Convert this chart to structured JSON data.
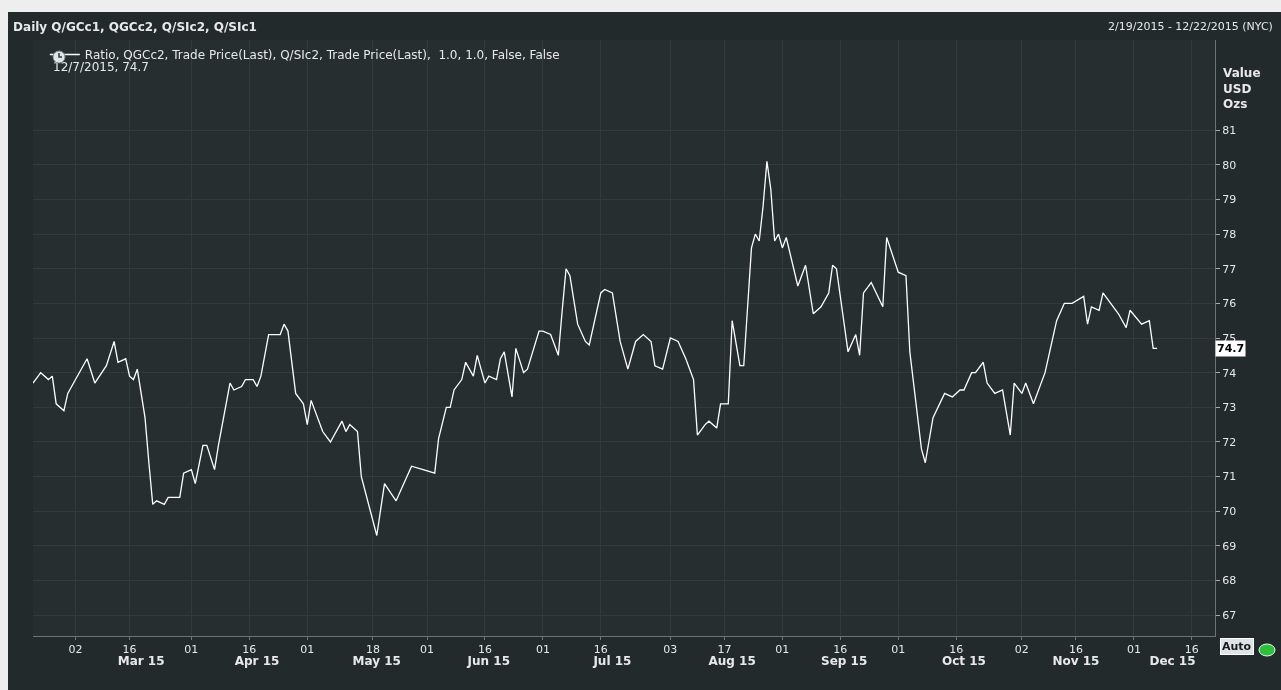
{
  "chart_data": {
    "type": "line",
    "title": "Daily Q/GCc1, QGCc2, Q/SIc2, Q/SIc1",
    "subtitle": "2/19/2015 - 12/22/2015 (NYC)",
    "ylabel": "Value\nUSD\nOzs",
    "annotations": [
      "12/7/2015, 74.7",
      "74.7",
      "Auto"
    ],
    "x": [
      "2015-02-19",
      "2015-02-21",
      "2015-02-23",
      "2015-02-24",
      "2015-02-25",
      "2015-02-27",
      "2015-02-28",
      "2015-03-01",
      "2015-03-05",
      "2015-03-07",
      "2015-03-10",
      "2015-03-12",
      "2015-03-13",
      "2015-03-15",
      "2015-03-16",
      "2015-03-17",
      "2015-03-18",
      "2015-03-20",
      "2015-03-21",
      "2015-03-22",
      "2015-03-23",
      "2015-03-25",
      "2015-03-26",
      "2015-03-27",
      "2015-03-29",
      "2015-03-30",
      "2015-04-01",
      "2015-04-02",
      "2015-04-04",
      "2015-04-05",
      "2015-04-07",
      "2015-04-08",
      "2015-04-11",
      "2015-04-12",
      "2015-04-14",
      "2015-04-15",
      "2015-04-17",
      "2015-04-18",
      "2015-04-19",
      "2015-04-21",
      "2015-04-24",
      "2015-04-25",
      "2015-04-26",
      "2015-04-28",
      "2015-04-30",
      "2015-05-01",
      "2015-05-02",
      "2015-05-05",
      "2015-05-07",
      "2015-05-08",
      "2015-05-10",
      "2015-05-11",
      "2015-05-12",
      "2015-05-14",
      "2015-05-15",
      "2015-05-19",
      "2015-05-21",
      "2015-05-24",
      "2015-05-28",
      "2015-05-31",
      "2015-06-03",
      "2015-06-04",
      "2015-06-06",
      "2015-06-07",
      "2015-06-08",
      "2015-06-10",
      "2015-06-11",
      "2015-06-13",
      "2015-06-14",
      "2015-06-16",
      "2015-06-17",
      "2015-06-19",
      "2015-06-20",
      "2015-06-21",
      "2015-06-23",
      "2015-06-24",
      "2015-06-26",
      "2015-06-27",
      "2015-06-30",
      "2015-07-01",
      "2015-07-03",
      "2015-07-05",
      "2015-07-06",
      "2015-07-07",
      "2015-07-08",
      "2015-07-10",
      "2015-07-12",
      "2015-07-13",
      "2015-07-16",
      "2015-07-17",
      "2015-07-19",
      "2015-07-21",
      "2015-07-23",
      "2015-07-25",
      "2015-07-27",
      "2015-07-29",
      "2015-07-30",
      "2015-08-01",
      "2015-08-03",
      "2015-08-05",
      "2015-08-07",
      "2015-08-09",
      "2015-08-10",
      "2015-08-12",
      "2015-08-13",
      "2015-08-15",
      "2015-08-16",
      "2015-08-18",
      "2015-08-19",
      "2015-08-21",
      "2015-08-22",
      "2015-08-24",
      "2015-08-25",
      "2015-08-26",
      "2015-08-27",
      "2015-08-28",
      "2015-08-29",
      "2015-08-30",
      "2015-08-31",
      "2015-09-01",
      "2015-09-02",
      "2015-09-05",
      "2015-09-07",
      "2015-09-09",
      "2015-09-11",
      "2015-09-13",
      "2015-09-14",
      "2015-09-15",
      "2015-09-18",
      "2015-09-20",
      "2015-09-21",
      "2015-09-22",
      "2015-09-24",
      "2015-09-27",
      "2015-09-28",
      "2015-10-01",
      "2015-10-03",
      "2015-10-04",
      "2015-10-07",
      "2015-10-08",
      "2015-10-10",
      "2015-10-13",
      "2015-10-15",
      "2015-10-17",
      "2015-10-18",
      "2015-10-20",
      "2015-10-21",
      "2015-10-23",
      "2015-10-24",
      "2015-10-26",
      "2015-10-28",
      "2015-10-30",
      "2015-10-31",
      "2015-11-02",
      "2015-11-03",
      "2015-11-05",
      "2015-11-08",
      "2015-11-11",
      "2015-11-13",
      "2015-11-15",
      "2015-11-18",
      "2015-11-19",
      "2015-11-20",
      "2015-11-22",
      "2015-11-23",
      "2015-11-25",
      "2015-11-27",
      "2015-11-29",
      "2015-11-30",
      "2015-12-03",
      "2015-12-05",
      "2015-12-06",
      "2015-12-07"
    ],
    "series": [
      {
        "name": "Ratio, QGCc2, Trade Price(Last), Q/SIc2, Trade Price(Last),  1.0, 1.0, False, False",
        "color": "#ffffff",
        "values": [
          73.7,
          74.0,
          73.8,
          73.9,
          73.1,
          72.9,
          73.4,
          73.6,
          74.4,
          73.7,
          74.2,
          74.9,
          74.3,
          74.4,
          73.9,
          73.8,
          74.1,
          72.7,
          71.4,
          70.2,
          70.3,
          70.2,
          70.4,
          70.4,
          70.4,
          71.1,
          71.2,
          70.8,
          71.9,
          71.9,
          71.2,
          71.9,
          73.7,
          73.5,
          73.6,
          73.8,
          73.8,
          73.6,
          73.9,
          75.1,
          75.1,
          75.4,
          75.2,
          73.4,
          73.1,
          72.5,
          73.2,
          72.3,
          72.0,
          72.2,
          72.6,
          72.3,
          72.5,
          72.3,
          71.0,
          69.3,
          70.8,
          70.3,
          71.3,
          71.2,
          71.1,
          72.1,
          73.0,
          73.0,
          73.5,
          73.8,
          74.3,
          73.9,
          74.5,
          73.7,
          73.9,
          73.8,
          74.4,
          74.6,
          73.3,
          74.7,
          74.0,
          74.1,
          75.2,
          75.2,
          75.1,
          74.5,
          75.8,
          77.0,
          76.8,
          75.4,
          74.9,
          74.8,
          76.3,
          76.4,
          76.3,
          74.9,
          74.1,
          74.9,
          75.1,
          74.9,
          74.2,
          74.1,
          75.0,
          74.9,
          74.4,
          73.8,
          72.2,
          72.5,
          72.6,
          72.4,
          73.1,
          73.1,
          75.5,
          74.2,
          74.2,
          77.6,
          78.0,
          77.8,
          78.8,
          80.1,
          79.3,
          77.8,
          78.0,
          77.6,
          77.9,
          76.5,
          77.1,
          75.7,
          75.9,
          76.3,
          77.1,
          77.0,
          74.6,
          75.1,
          74.5,
          76.3,
          76.6,
          75.9,
          77.9,
          76.9,
          76.8,
          74.6,
          71.8,
          71.4,
          72.7,
          73.4,
          73.3,
          73.5,
          73.5,
          74.0,
          74.0,
          74.3,
          73.7,
          73.4,
          73.5,
          72.2,
          73.7,
          73.4,
          73.7,
          73.1,
          74.0,
          75.5,
          76.0,
          76.0,
          76.2,
          75.4,
          75.9,
          75.8,
          76.3,
          76.0,
          75.7,
          75.3,
          75.8,
          75.4,
          75.5,
          74.7,
          74.7
        ]
      }
    ],
    "xlim": [
      "2015-02-19",
      "2015-12-22"
    ],
    "xticks": [
      {
        "value": "2015-03-02",
        "label": "02"
      },
      {
        "value": "2015-03-16",
        "label": "16"
      },
      {
        "value": "2015-04-01",
        "label": "01"
      },
      {
        "value": "2015-04-16",
        "label": "16"
      },
      {
        "value": "2015-05-01",
        "label": "01"
      },
      {
        "value": "2015-05-18",
        "label": "18"
      },
      {
        "value": "2015-06-01",
        "label": "01"
      },
      {
        "value": "2015-06-16",
        "label": "16"
      },
      {
        "value": "2015-07-01",
        "label": "01"
      },
      {
        "value": "2015-07-16",
        "label": "16"
      },
      {
        "value": "2015-08-03",
        "label": "03"
      },
      {
        "value": "2015-08-17",
        "label": "17"
      },
      {
        "value": "2015-09-01",
        "label": "01"
      },
      {
        "value": "2015-09-16",
        "label": "16"
      },
      {
        "value": "2015-10-01",
        "label": "01"
      },
      {
        "value": "2015-10-16",
        "label": "16"
      },
      {
        "value": "2015-11-02",
        "label": "02"
      },
      {
        "value": "2015-11-16",
        "label": "16"
      },
      {
        "value": "2015-12-01",
        "label": "01"
      },
      {
        "value": "2015-12-16",
        "label": "16"
      }
    ],
    "x2lim": [
      "2015-02-19",
      "2015-12-22"
    ],
    "x2ticks": [
      {
        "value": "2015-03-19",
        "label": "Mar 15"
      },
      {
        "value": "2015-04-18",
        "label": "Apr 15"
      },
      {
        "value": "2015-05-19",
        "label": "May 15"
      },
      {
        "value": "2015-06-17",
        "label": "Jun 15"
      },
      {
        "value": "2015-07-19",
        "label": "Jul 15"
      },
      {
        "value": "2015-08-19",
        "label": "Aug 15"
      },
      {
        "value": "2015-09-17",
        "label": "Sep 15"
      },
      {
        "value": "2015-10-18",
        "label": "Oct 15"
      },
      {
        "value": "2015-11-16",
        "label": "Nov 15"
      },
      {
        "value": "2015-12-11",
        "label": "Dec 15"
      }
    ],
    "ylim": [
      66.4,
      83.6
    ],
    "yticks": [
      67,
      68,
      69,
      70,
      71,
      72,
      73,
      74,
      75,
      76,
      77,
      78,
      79,
      80,
      81
    ],
    "grid": true,
    "legend": "top left",
    "marker": "none",
    "line_style": "solid"
  }
}
